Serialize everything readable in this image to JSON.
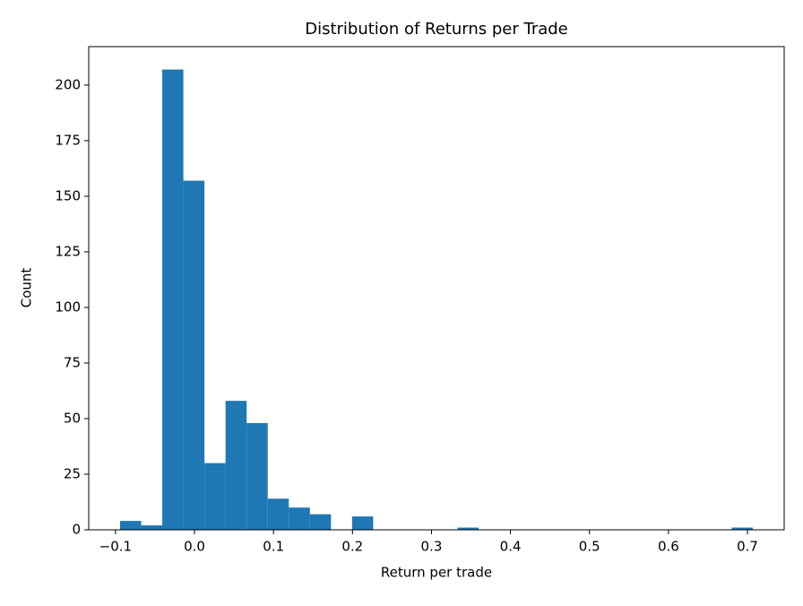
{
  "chart_data": {
    "type": "histogram",
    "title": "Distribution of Returns per Trade",
    "x_label": "Return per trade",
    "y_label": "Count",
    "bins": [
      -0.0942,
      -0.0675,
      -0.0408,
      -0.0141,
      0.0126,
      0.0393,
      0.066,
      0.0927,
      0.1194,
      0.1461,
      0.1728,
      0.1995,
      0.2262,
      0.2529,
      0.2796,
      0.3063,
      0.333,
      0.3597,
      0.3864,
      0.4131,
      0.4398,
      0.4665,
      0.4932,
      0.5199,
      0.5466,
      0.5733,
      0.6,
      0.6267,
      0.6534,
      0.6801,
      0.7068
    ],
    "values": [
      4,
      2,
      207,
      157,
      30,
      58,
      48,
      14,
      10,
      7,
      0,
      6,
      0,
      0,
      0,
      0,
      1,
      0,
      0,
      0,
      0,
      0,
      0,
      0,
      0,
      0,
      0,
      0,
      0,
      1
    ],
    "color": "#1f77b4",
    "xlim": [
      -0.1339,
      0.7465
    ],
    "ylim": [
      0,
      217.3
    ],
    "xticks": [
      {
        "value": -0.1,
        "label": "−0.1"
      },
      {
        "value": 0,
        "label": "0.0"
      },
      0.1,
      0.2,
      0.3,
      0.4,
      0.5,
      0.6,
      0.7
    ],
    "yticks": [
      0,
      25,
      50,
      75,
      100,
      125,
      150,
      175,
      200
    ]
  }
}
